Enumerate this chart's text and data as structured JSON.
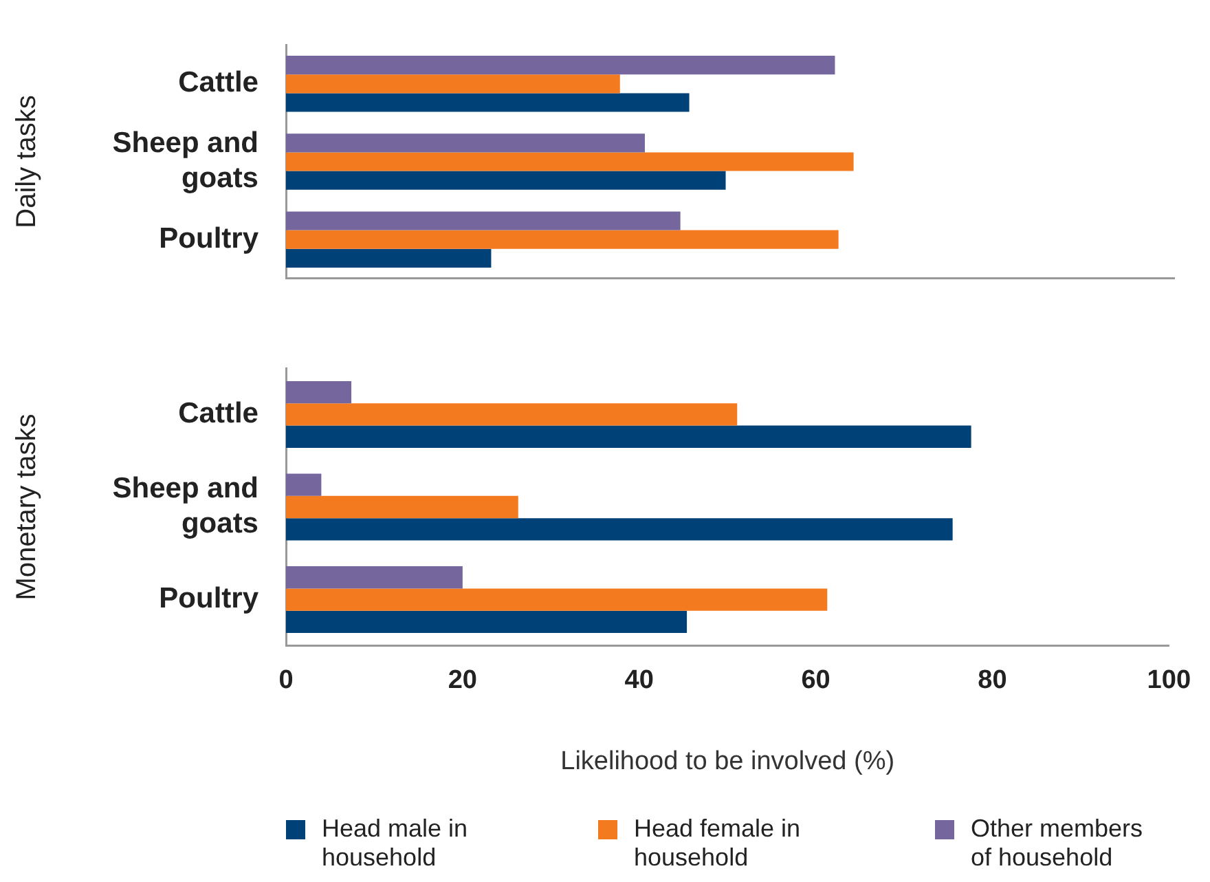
{
  "chart_data": [
    {
      "type": "bar",
      "orientation": "horizontal",
      "ylabel": "Daily tasks",
      "categories": [
        "Cattle",
        "Sheep and goats",
        "Poultry"
      ],
      "xlim": [
        0,
        100
      ],
      "xticks": [
        0,
        20,
        40,
        60,
        80,
        100
      ],
      "tick_labels": "y",
      "grid": false,
      "legend": false,
      "series": [
        {
          "color": "#004178",
          "values": [
            45.4,
            49.5,
            23.1
          ]
        },
        {
          "color": "#f47a20",
          "values": [
            37.6,
            63.9,
            62.2
          ]
        },
        {
          "color": "#75669e",
          "values": [
            61.8,
            40.4,
            44.4
          ]
        }
      ]
    },
    {
      "type": "bar",
      "orientation": "horizontal",
      "ylabel": "Monetary tasks",
      "xlabel": "Likelihood to be involved (%)",
      "categories": [
        "Cattle",
        "Sheep and goats",
        "Poultry"
      ],
      "xlim": [
        0,
        100
      ],
      "xticks": [
        0,
        20,
        40,
        60,
        80,
        100
      ],
      "grid": false,
      "legend": "bottom",
      "series": [
        {
          "name": "Head male in household",
          "color": "#004178",
          "values": [
            77.6,
            75.5,
            45.4
          ]
        },
        {
          "name": "Head female in household",
          "color": "#f47a20",
          "values": [
            51.1,
            26.3,
            61.3
          ]
        },
        {
          "name": "Other members of household",
          "color": "#75669e",
          "values": [
            7.4,
            4.0,
            20.0
          ]
        }
      ]
    }
  ]
}
